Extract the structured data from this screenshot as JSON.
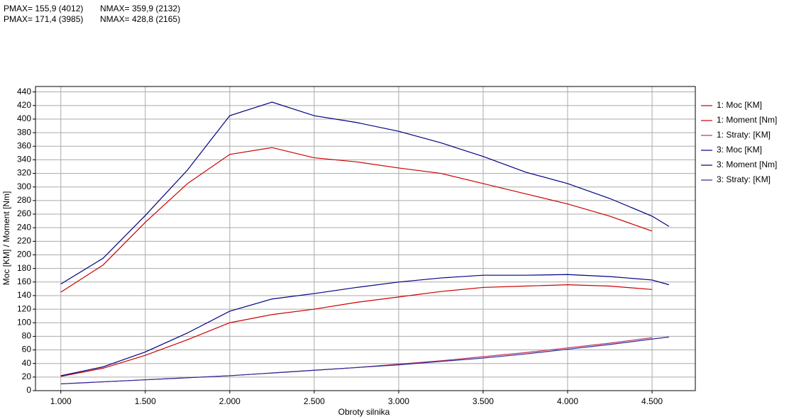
{
  "header": {
    "rows": [
      [
        "PMAX= 155,9 (4012)",
        "NMAX= 359,9 (2132)"
      ],
      [
        "PMAX= 171,4 (3985)",
        "NMAX= 428,8 (2165)"
      ]
    ]
  },
  "chart_data": {
    "type": "line",
    "xlabel": "Obroty silnika",
    "ylabel": "Moc [KM] / Moment [Nm]",
    "xlim": [
      850,
      4756
    ],
    "ylim": [
      0,
      448
    ],
    "grid": true,
    "legend": "right",
    "xticks": [
      {
        "value": 1000,
        "label": "1.000"
      },
      {
        "value": 1500,
        "label": "1.500"
      },
      {
        "value": 2000,
        "label": "2.000"
      },
      {
        "value": 2500,
        "label": "2.500"
      },
      {
        "value": 3000,
        "label": "3.000"
      },
      {
        "value": 3500,
        "label": "3.500"
      },
      {
        "value": 4000,
        "label": "4.000"
      },
      {
        "value": 4500,
        "label": "4.500"
      }
    ],
    "yticks": [
      0,
      20,
      40,
      60,
      80,
      100,
      120,
      140,
      160,
      180,
      200,
      220,
      240,
      260,
      280,
      300,
      320,
      340,
      360,
      380,
      400,
      420,
      440
    ],
    "series": [
      {
        "name": "1: Moc [KM]",
        "color": "#cc0000",
        "x": [
          1000,
          1250,
          1500,
          1750,
          2000,
          2250,
          2500,
          2750,
          3000,
          3250,
          3500,
          3750,
          4000,
          4250,
          4500
        ],
        "values": [
          21,
          33,
          52,
          75,
          100,
          112,
          120,
          130,
          138,
          146,
          152,
          154,
          156,
          154,
          149
        ]
      },
      {
        "name": "1: Moment [Nm]",
        "color": "#cc0000",
        "x": [
          1000,
          1250,
          1500,
          1750,
          2000,
          2250,
          2500,
          2750,
          3000,
          3250,
          3500,
          3750,
          4000,
          4250,
          4500
        ],
        "values": [
          145,
          185,
          248,
          305,
          348,
          358,
          343,
          337,
          328,
          320,
          305,
          290,
          275,
          257,
          235
        ]
      },
      {
        "name": "1: Straty: [KM]",
        "color": "#c0305a",
        "x": [
          1000,
          1250,
          1500,
          1750,
          2000,
          2250,
          2500,
          2750,
          3000,
          3250,
          3500,
          3750,
          4000,
          4250,
          4500
        ],
        "values": [
          10,
          13,
          16,
          19,
          22,
          26,
          30,
          34,
          39,
          44,
          50,
          56,
          63,
          70,
          78
        ]
      },
      {
        "name": "3: Moc [KM]",
        "color": "#000080",
        "x": [
          1000,
          1250,
          1500,
          1750,
          2000,
          2250,
          2500,
          2750,
          3000,
          3250,
          3500,
          3750,
          4000,
          4250,
          4500,
          4600
        ],
        "values": [
          22,
          35,
          57,
          85,
          117,
          135,
          143,
          152,
          160,
          166,
          170,
          170,
          171,
          168,
          163,
          156
        ]
      },
      {
        "name": "3: Moment [Nm]",
        "color": "#000080",
        "x": [
          1000,
          1250,
          1500,
          1750,
          2000,
          2250,
          2500,
          2750,
          3000,
          3250,
          3500,
          3750,
          4000,
          4250,
          4500,
          4600
        ],
        "values": [
          157,
          195,
          258,
          325,
          405,
          425,
          405,
          395,
          382,
          365,
          345,
          322,
          305,
          283,
          257,
          242
        ]
      },
      {
        "name": "3: Straty: [KM]",
        "color": "#2a2a9a",
        "x": [
          1000,
          1250,
          1500,
          1750,
          2000,
          2250,
          2500,
          2750,
          3000,
          3250,
          3500,
          3750,
          4000,
          4250,
          4500,
          4600
        ],
        "values": [
          10,
          13,
          16,
          19,
          22,
          26,
          30,
          34,
          38,
          43,
          48,
          54,
          61,
          68,
          76,
          79
        ]
      }
    ]
  }
}
